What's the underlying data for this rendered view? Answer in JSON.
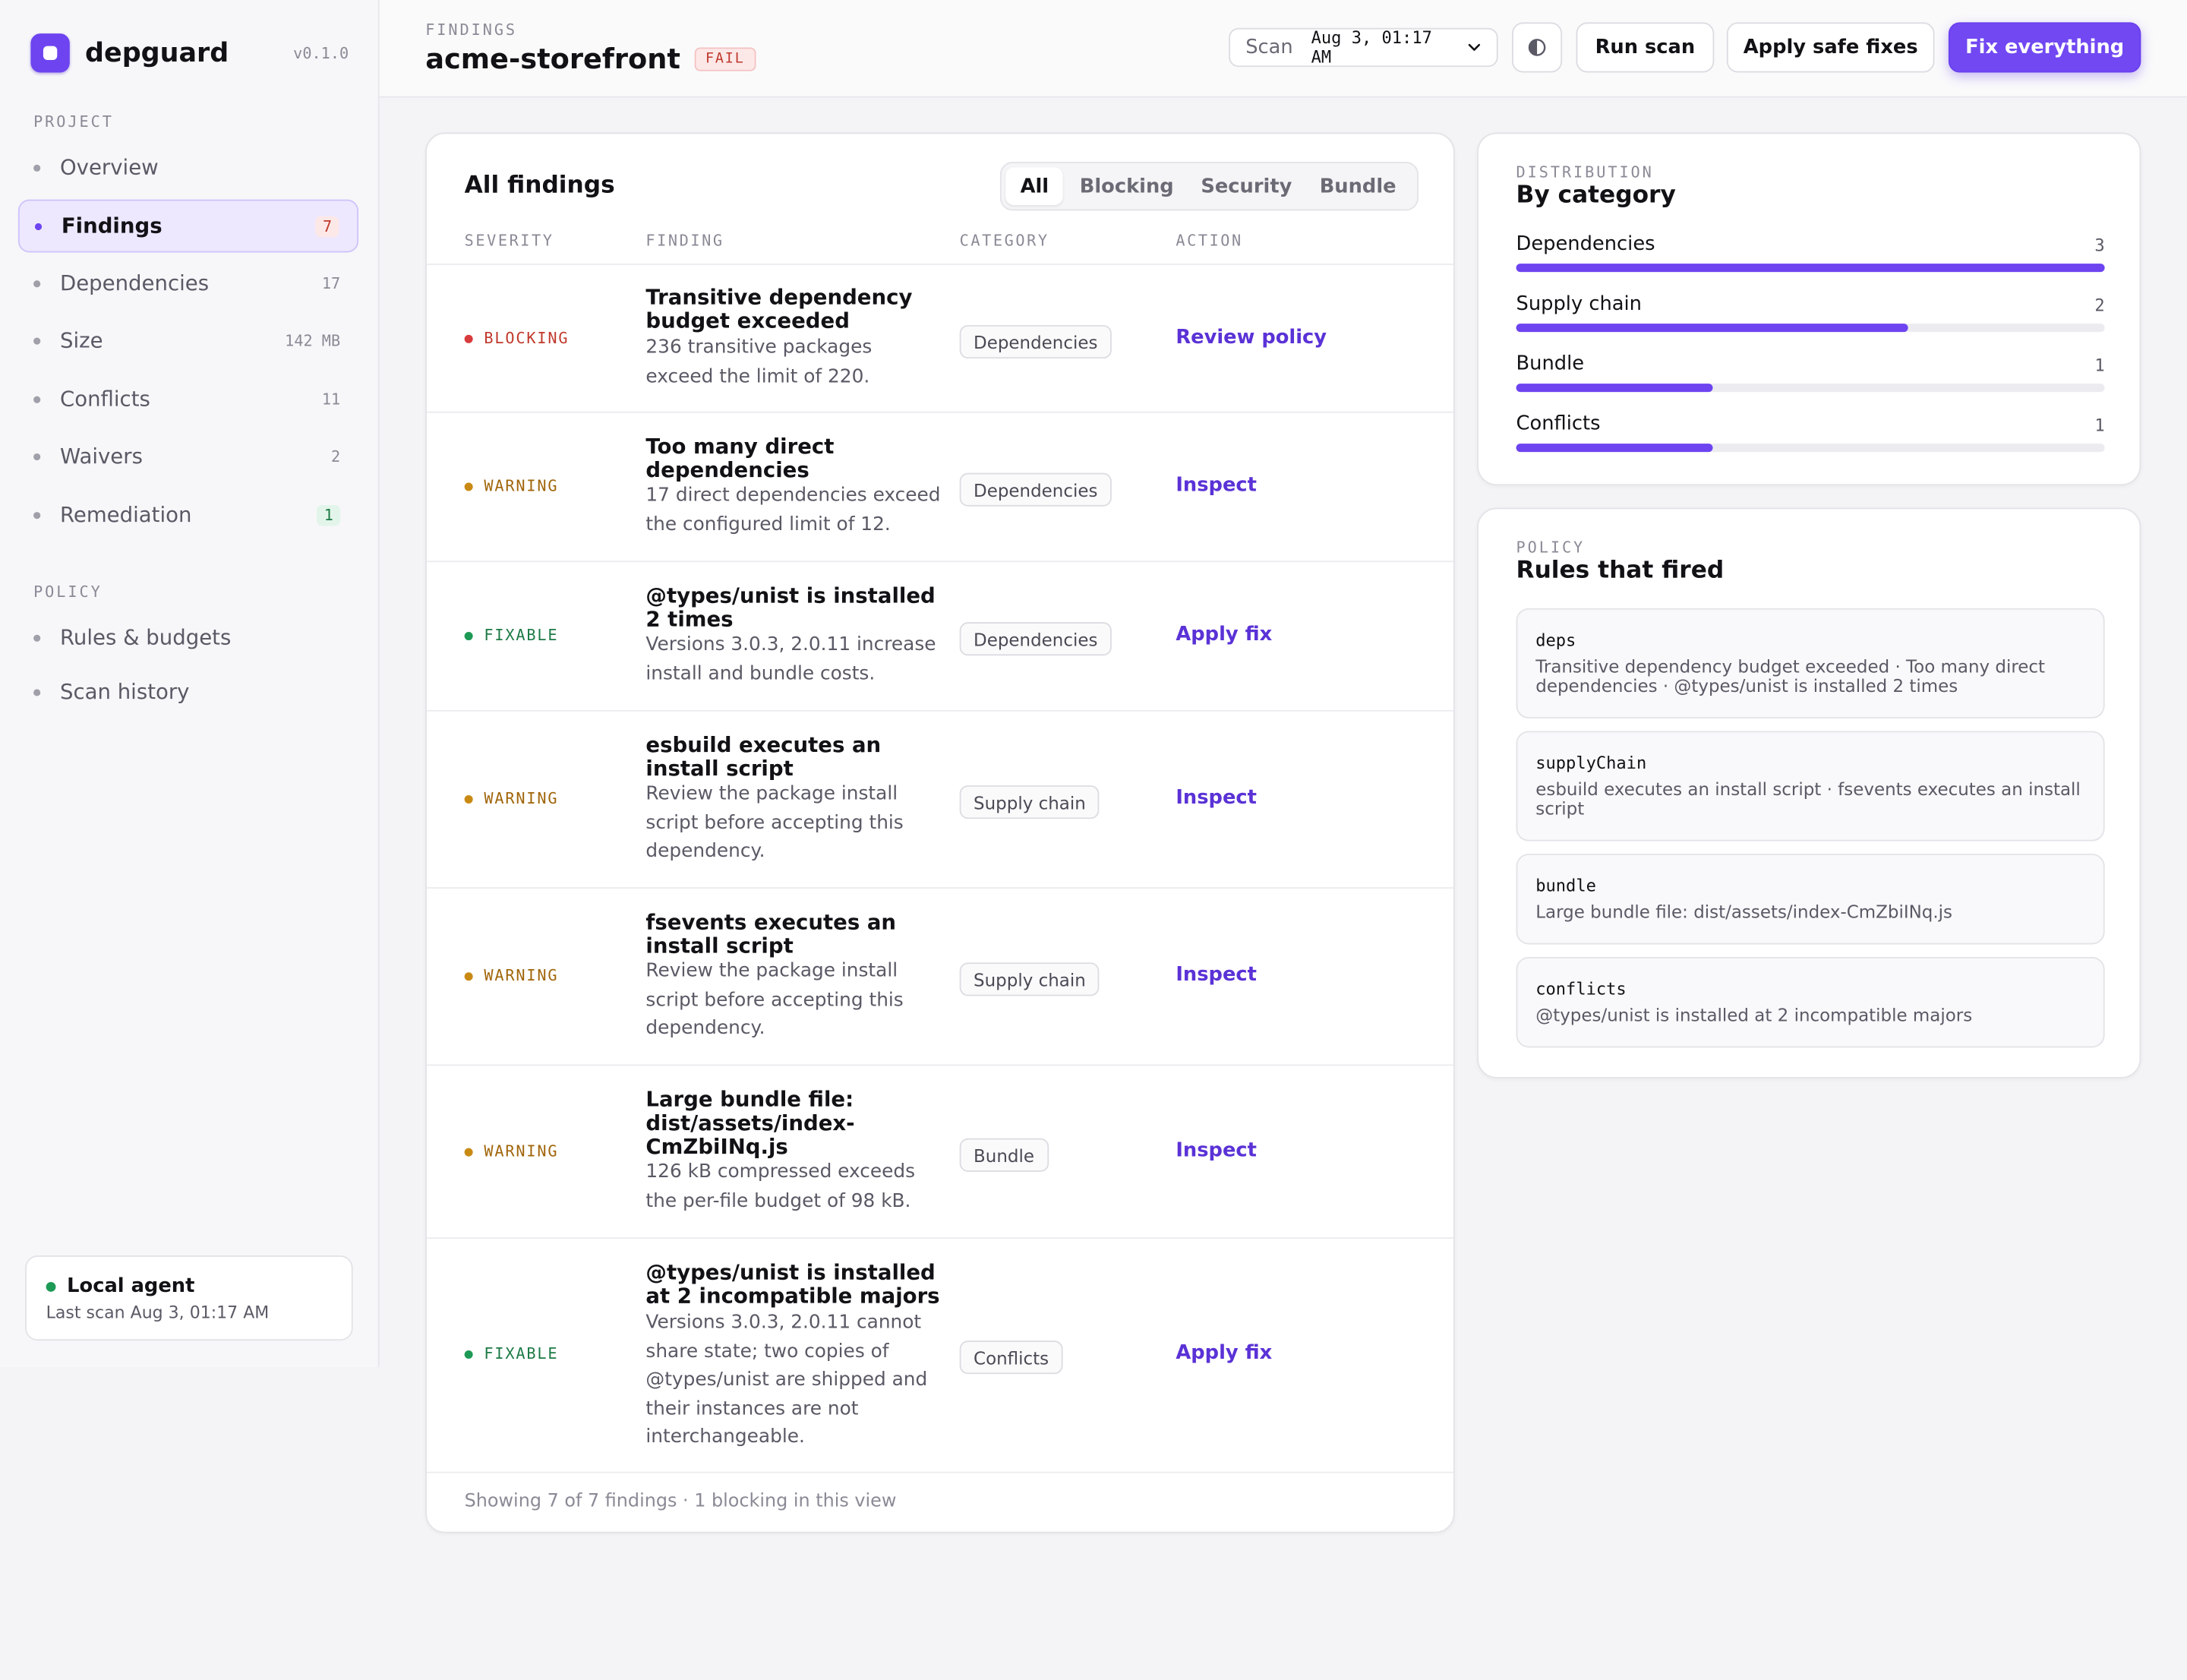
{
  "app": {
    "name": "depguard",
    "version": "v0.1.0"
  },
  "sidebar": {
    "project_label": "PROJECT",
    "project_items": [
      {
        "label": "Overview",
        "count": ""
      },
      {
        "label": "Findings",
        "count": "7"
      },
      {
        "label": "Dependencies",
        "count": "17"
      },
      {
        "label": "Size",
        "count": "142 MB"
      },
      {
        "label": "Conflicts",
        "count": "11"
      },
      {
        "label": "Waivers",
        "count": "2"
      },
      {
        "label": "Remediation",
        "count": "1"
      }
    ],
    "policy_label": "POLICY",
    "policy_items": [
      {
        "label": "Rules & budgets"
      },
      {
        "label": "Scan history"
      }
    ],
    "agent": {
      "title": "Local agent",
      "subtitle": "Last scan Aug 3, 01:17 AM"
    }
  },
  "header": {
    "eyebrow": "FINDINGS",
    "title": "acme-storefront",
    "status_badge": "FAIL",
    "scan_label": "Scan",
    "scan_value": "Aug 3, 01:17 AM",
    "theme_icon": "contrast-icon",
    "run_scan": "Run scan",
    "apply_safe_fixes": "Apply safe fixes",
    "fix_everything": "Fix everything"
  },
  "findings": {
    "title": "All findings",
    "filters": [
      "All",
      "Blocking",
      "Security",
      "Bundle"
    ],
    "active_filter": "All",
    "columns": [
      "SEVERITY",
      "FINDING",
      "CATEGORY",
      "ACTION"
    ],
    "rows": [
      {
        "severity": "BLOCKING",
        "title": "Transitive dependency budget exceeded",
        "description": "236 transitive packages exceed the limit of 220.",
        "category": "Dependencies",
        "action": "Review policy"
      },
      {
        "severity": "WARNING",
        "title": "Too many direct dependencies",
        "description": "17 direct dependencies exceed the configured limit of 12.",
        "category": "Dependencies",
        "action": "Inspect"
      },
      {
        "severity": "FIXABLE",
        "title": "@types/unist is installed 2 times",
        "description": "Versions 3.0.3, 2.0.11 increase install and bundle costs.",
        "category": "Dependencies",
        "action": "Apply fix"
      },
      {
        "severity": "WARNING",
        "title": "esbuild executes an install script",
        "description": "Review the package install script before accepting this dependency.",
        "category": "Supply chain",
        "action": "Inspect"
      },
      {
        "severity": "WARNING",
        "title": "fsevents executes an install script",
        "description": "Review the package install script before accepting this dependency.",
        "category": "Supply chain",
        "action": "Inspect"
      },
      {
        "severity": "WARNING",
        "title": "Large bundle file: dist/assets/index-CmZbiINq.js",
        "description": "126 kB compressed exceeds the per-file budget of 98 kB.",
        "category": "Bundle",
        "action": "Inspect"
      },
      {
        "severity": "FIXABLE",
        "title": "@types/unist is installed at 2 incompatible majors",
        "description": "Versions 3.0.3, 2.0.11 cannot share state; two copies of @types/unist are shipped and their instances are not interchangeable.",
        "category": "Conflicts",
        "action": "Apply fix"
      }
    ],
    "footer": "Showing 7 of 7 findings · 1 blocking in this view"
  },
  "distribution": {
    "eyebrow": "DISTRIBUTION",
    "title": "By category",
    "max": 3,
    "items": [
      {
        "label": "Dependencies",
        "value": 3
      },
      {
        "label": "Supply chain",
        "value": 2
      },
      {
        "label": "Bundle",
        "value": 1
      },
      {
        "label": "Conflicts",
        "value": 1
      }
    ]
  },
  "rules": {
    "eyebrow": "POLICY",
    "title": "Rules that fired",
    "items": [
      {
        "name": "deps",
        "description": "Transitive dependency budget exceeded · Too many direct dependencies · @types/unist is installed 2 times"
      },
      {
        "name": "supplyChain",
        "description": "esbuild executes an install script · fsevents executes an install script"
      },
      {
        "name": "bundle",
        "description": "Large bundle file: dist/assets/index-CmZbiINq.js"
      },
      {
        "name": "conflicts",
        "description": "@types/unist is installed at 2 incompatible majors"
      }
    ]
  },
  "colors": {
    "accent": "#6d44f0",
    "blocking": "#c0392b",
    "warning": "#a0650a",
    "fixable": "#1d7a46"
  }
}
